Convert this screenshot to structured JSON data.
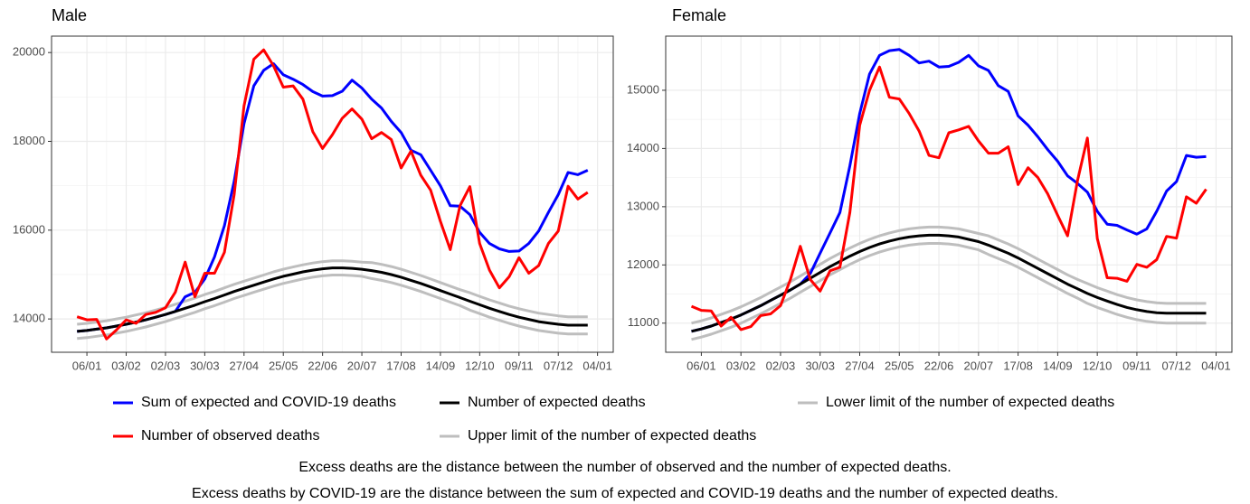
{
  "chart_data": [
    {
      "type": "line",
      "title": "Male",
      "categories": [
        null,
        "06/01",
        null,
        null,
        null,
        "03/02",
        null,
        null,
        null,
        "02/03",
        null,
        null,
        null,
        "30/03",
        null,
        null,
        null,
        "27/04",
        null,
        null,
        null,
        "25/05",
        null,
        null,
        null,
        "22/06",
        null,
        null,
        null,
        "20/07",
        null,
        null,
        null,
        "17/08",
        null,
        null,
        null,
        "14/09",
        null,
        null,
        null,
        "12/10",
        null,
        null,
        null,
        "09/11",
        null,
        null,
        null,
        "07/12",
        null,
        null,
        null,
        "04/01"
      ],
      "ylim": [
        13250,
        20370
      ],
      "yticks": [
        14000,
        16000,
        18000,
        20000
      ],
      "grid": true,
      "series": [
        {
          "name": "Sum of expected and COVID-19 deaths",
          "color": "#0000ff",
          "values": [
            13720,
            13740,
            13770,
            13800,
            13840,
            13880,
            13930,
            13980,
            14040,
            14100,
            14170,
            14500,
            14600,
            14900,
            15400,
            16100,
            17100,
            18400,
            19250,
            19600,
            19750,
            19500,
            19400,
            19280,
            19120,
            19020,
            19030,
            19130,
            19380,
            19200,
            18950,
            18750,
            18450,
            18200,
            17800,
            17700,
            17350,
            17000,
            16550,
            16540,
            16350,
            15950,
            15700,
            15580,
            15520,
            15530,
            15700,
            15980,
            16400,
            16800,
            17300,
            17250,
            17350,
            null
          ]
        },
        {
          "name": "Number of observed deaths",
          "color": "#ff0000",
          "values": [
            14050,
            13980,
            13990,
            13550,
            13750,
            13980,
            13900,
            14100,
            14150,
            14250,
            14600,
            15280,
            14500,
            15030,
            15030,
            15500,
            16800,
            18800,
            19850,
            20060,
            19700,
            19220,
            19250,
            18950,
            18220,
            17840,
            18150,
            18520,
            18730,
            18500,
            18060,
            18200,
            18040,
            17400,
            17780,
            17240,
            16900,
            16200,
            15560,
            16550,
            16980,
            15700,
            15100,
            14700,
            14950,
            15380,
            15030,
            15200,
            15700,
            15980,
            16990,
            16700,
            16850,
            null
          ]
        },
        {
          "name": "Number of expected deaths",
          "color": "#000000",
          "values": [
            13720,
            13740,
            13770,
            13800,
            13840,
            13880,
            13930,
            13980,
            14040,
            14100,
            14170,
            14240,
            14310,
            14390,
            14460,
            14540,
            14620,
            14690,
            14760,
            14830,
            14900,
            14960,
            15010,
            15060,
            15100,
            15130,
            15150,
            15150,
            15140,
            15120,
            15090,
            15050,
            15000,
            14940,
            14870,
            14800,
            14720,
            14640,
            14560,
            14480,
            14400,
            14320,
            14240,
            14170,
            14100,
            14040,
            13990,
            13940,
            13910,
            13880,
            13860,
            13860,
            13860,
            null
          ]
        },
        {
          "name": "Upper limit of the number of expected deaths",
          "color": "#bebebe",
          "values": [
            13880,
            13900,
            13930,
            13960,
            14000,
            14040,
            14090,
            14140,
            14200,
            14260,
            14330,
            14400,
            14470,
            14550,
            14620,
            14700,
            14780,
            14850,
            14920,
            14990,
            15060,
            15120,
            15170,
            15220,
            15260,
            15290,
            15310,
            15310,
            15300,
            15280,
            15270,
            15230,
            15180,
            15120,
            15050,
            14980,
            14900,
            14820,
            14740,
            14660,
            14590,
            14510,
            14430,
            14360,
            14290,
            14230,
            14180,
            14130,
            14100,
            14070,
            14050,
            14050,
            14050,
            null
          ]
        },
        {
          "name": "Lower limit of the number of expected deaths",
          "color": "#bebebe",
          "values": [
            13560,
            13580,
            13610,
            13640,
            13680,
            13720,
            13770,
            13820,
            13880,
            13940,
            14010,
            14080,
            14150,
            14230,
            14300,
            14380,
            14460,
            14530,
            14600,
            14670,
            14740,
            14800,
            14850,
            14900,
            14940,
            14970,
            14990,
            14990,
            14980,
            14960,
            14910,
            14870,
            14820,
            14760,
            14690,
            14620,
            14540,
            14460,
            14380,
            14300,
            14200,
            14120,
            14040,
            13970,
            13900,
            13840,
            13790,
            13740,
            13710,
            13680,
            13660,
            13660,
            13660,
            null
          ]
        }
      ]
    },
    {
      "type": "line",
      "title": "Female",
      "categories": [
        null,
        "06/01",
        null,
        null,
        null,
        "03/02",
        null,
        null,
        null,
        "02/03",
        null,
        null,
        null,
        "30/03",
        null,
        null,
        null,
        "27/04",
        null,
        null,
        null,
        "25/05",
        null,
        null,
        null,
        "22/06",
        null,
        null,
        null,
        "20/07",
        null,
        null,
        null,
        "17/08",
        null,
        null,
        null,
        "14/09",
        null,
        null,
        null,
        "12/10",
        null,
        null,
        null,
        "09/11",
        null,
        null,
        null,
        "07/12",
        null,
        null,
        null,
        "04/01"
      ],
      "ylim": [
        10500,
        15930
      ],
      "yticks": [
        11000,
        12000,
        13000,
        14000,
        15000
      ],
      "grid": true,
      "series": [
        {
          "name": "Sum of expected and COVID-19 deaths",
          "color": "#0000ff",
          "values": [
            10860,
            10900,
            10950,
            11010,
            11070,
            11140,
            11220,
            11300,
            11390,
            11480,
            11570,
            11670,
            11850,
            12200,
            12550,
            12900,
            13700,
            14600,
            15280,
            15600,
            15680,
            15700,
            15600,
            15470,
            15500,
            15400,
            15410,
            15480,
            15600,
            15420,
            15340,
            15080,
            14980,
            14560,
            14400,
            14200,
            13980,
            13780,
            13530,
            13400,
            13250,
            12920,
            12700,
            12680,
            12600,
            12530,
            12620,
            12920,
            13270,
            13430,
            13880,
            13850,
            13860,
            null
          ]
        },
        {
          "name": "Number of observed deaths",
          "color": "#ff0000",
          "values": [
            11290,
            11220,
            11210,
            10950,
            11100,
            10890,
            10940,
            11130,
            11160,
            11300,
            11750,
            12320,
            11750,
            11550,
            11900,
            11960,
            12900,
            14400,
            15000,
            15400,
            14880,
            14850,
            14600,
            14300,
            13880,
            13840,
            14270,
            14320,
            14380,
            14130,
            13920,
            13920,
            14030,
            13380,
            13670,
            13500,
            13220,
            12850,
            12500,
            13450,
            14180,
            12450,
            11780,
            11770,
            11720,
            12010,
            11960,
            12090,
            12490,
            12460,
            13170,
            13060,
            13300,
            null
          ]
        },
        {
          "name": "Number of expected deaths",
          "color": "#000000",
          "values": [
            10860,
            10900,
            10950,
            11010,
            11070,
            11140,
            11220,
            11300,
            11390,
            11480,
            11570,
            11670,
            11770,
            11870,
            11970,
            12060,
            12150,
            12230,
            12300,
            12360,
            12410,
            12450,
            12480,
            12500,
            12510,
            12510,
            12500,
            12480,
            12440,
            12400,
            12340,
            12270,
            12200,
            12120,
            12030,
            11940,
            11850,
            11760,
            11670,
            11590,
            11510,
            11440,
            11380,
            11320,
            11270,
            11230,
            11200,
            11180,
            11170,
            11170,
            11170,
            11170,
            11170,
            null
          ]
        },
        {
          "name": "Upper limit of the number of expected deaths",
          "color": "#bebebe",
          "values": [
            11000,
            11040,
            11090,
            11150,
            11210,
            11280,
            11360,
            11440,
            11530,
            11620,
            11710,
            11810,
            11910,
            12010,
            12110,
            12200,
            12290,
            12370,
            12440,
            12500,
            12550,
            12590,
            12620,
            12640,
            12650,
            12650,
            12640,
            12620,
            12580,
            12540,
            12500,
            12430,
            12360,
            12280,
            12190,
            12100,
            12010,
            11920,
            11830,
            11750,
            11680,
            11610,
            11550,
            11490,
            11440,
            11400,
            11370,
            11350,
            11340,
            11340,
            11340,
            11340,
            11340,
            null
          ]
        },
        {
          "name": "Lower limit of the number of expected deaths",
          "color": "#bebebe",
          "values": [
            10720,
            10760,
            10810,
            10870,
            10930,
            11000,
            11080,
            11160,
            11250,
            11340,
            11430,
            11530,
            11630,
            11730,
            11830,
            11920,
            12010,
            12090,
            12160,
            12220,
            12270,
            12310,
            12340,
            12360,
            12370,
            12370,
            12360,
            12340,
            12300,
            12260,
            12180,
            12110,
            12040,
            11960,
            11870,
            11780,
            11690,
            11600,
            11510,
            11430,
            11340,
            11270,
            11210,
            11150,
            11100,
            11060,
            11030,
            11010,
            11000,
            11000,
            11000,
            11000,
            11000,
            null
          ]
        }
      ]
    }
  ],
  "notes": [
    "Excess deaths are the distance between the number of observed and the number of expected deaths.",
    "Excess deaths by COVID-19 are the distance between the sum of expected and COVID-19 deaths and the number of expected deaths."
  ]
}
